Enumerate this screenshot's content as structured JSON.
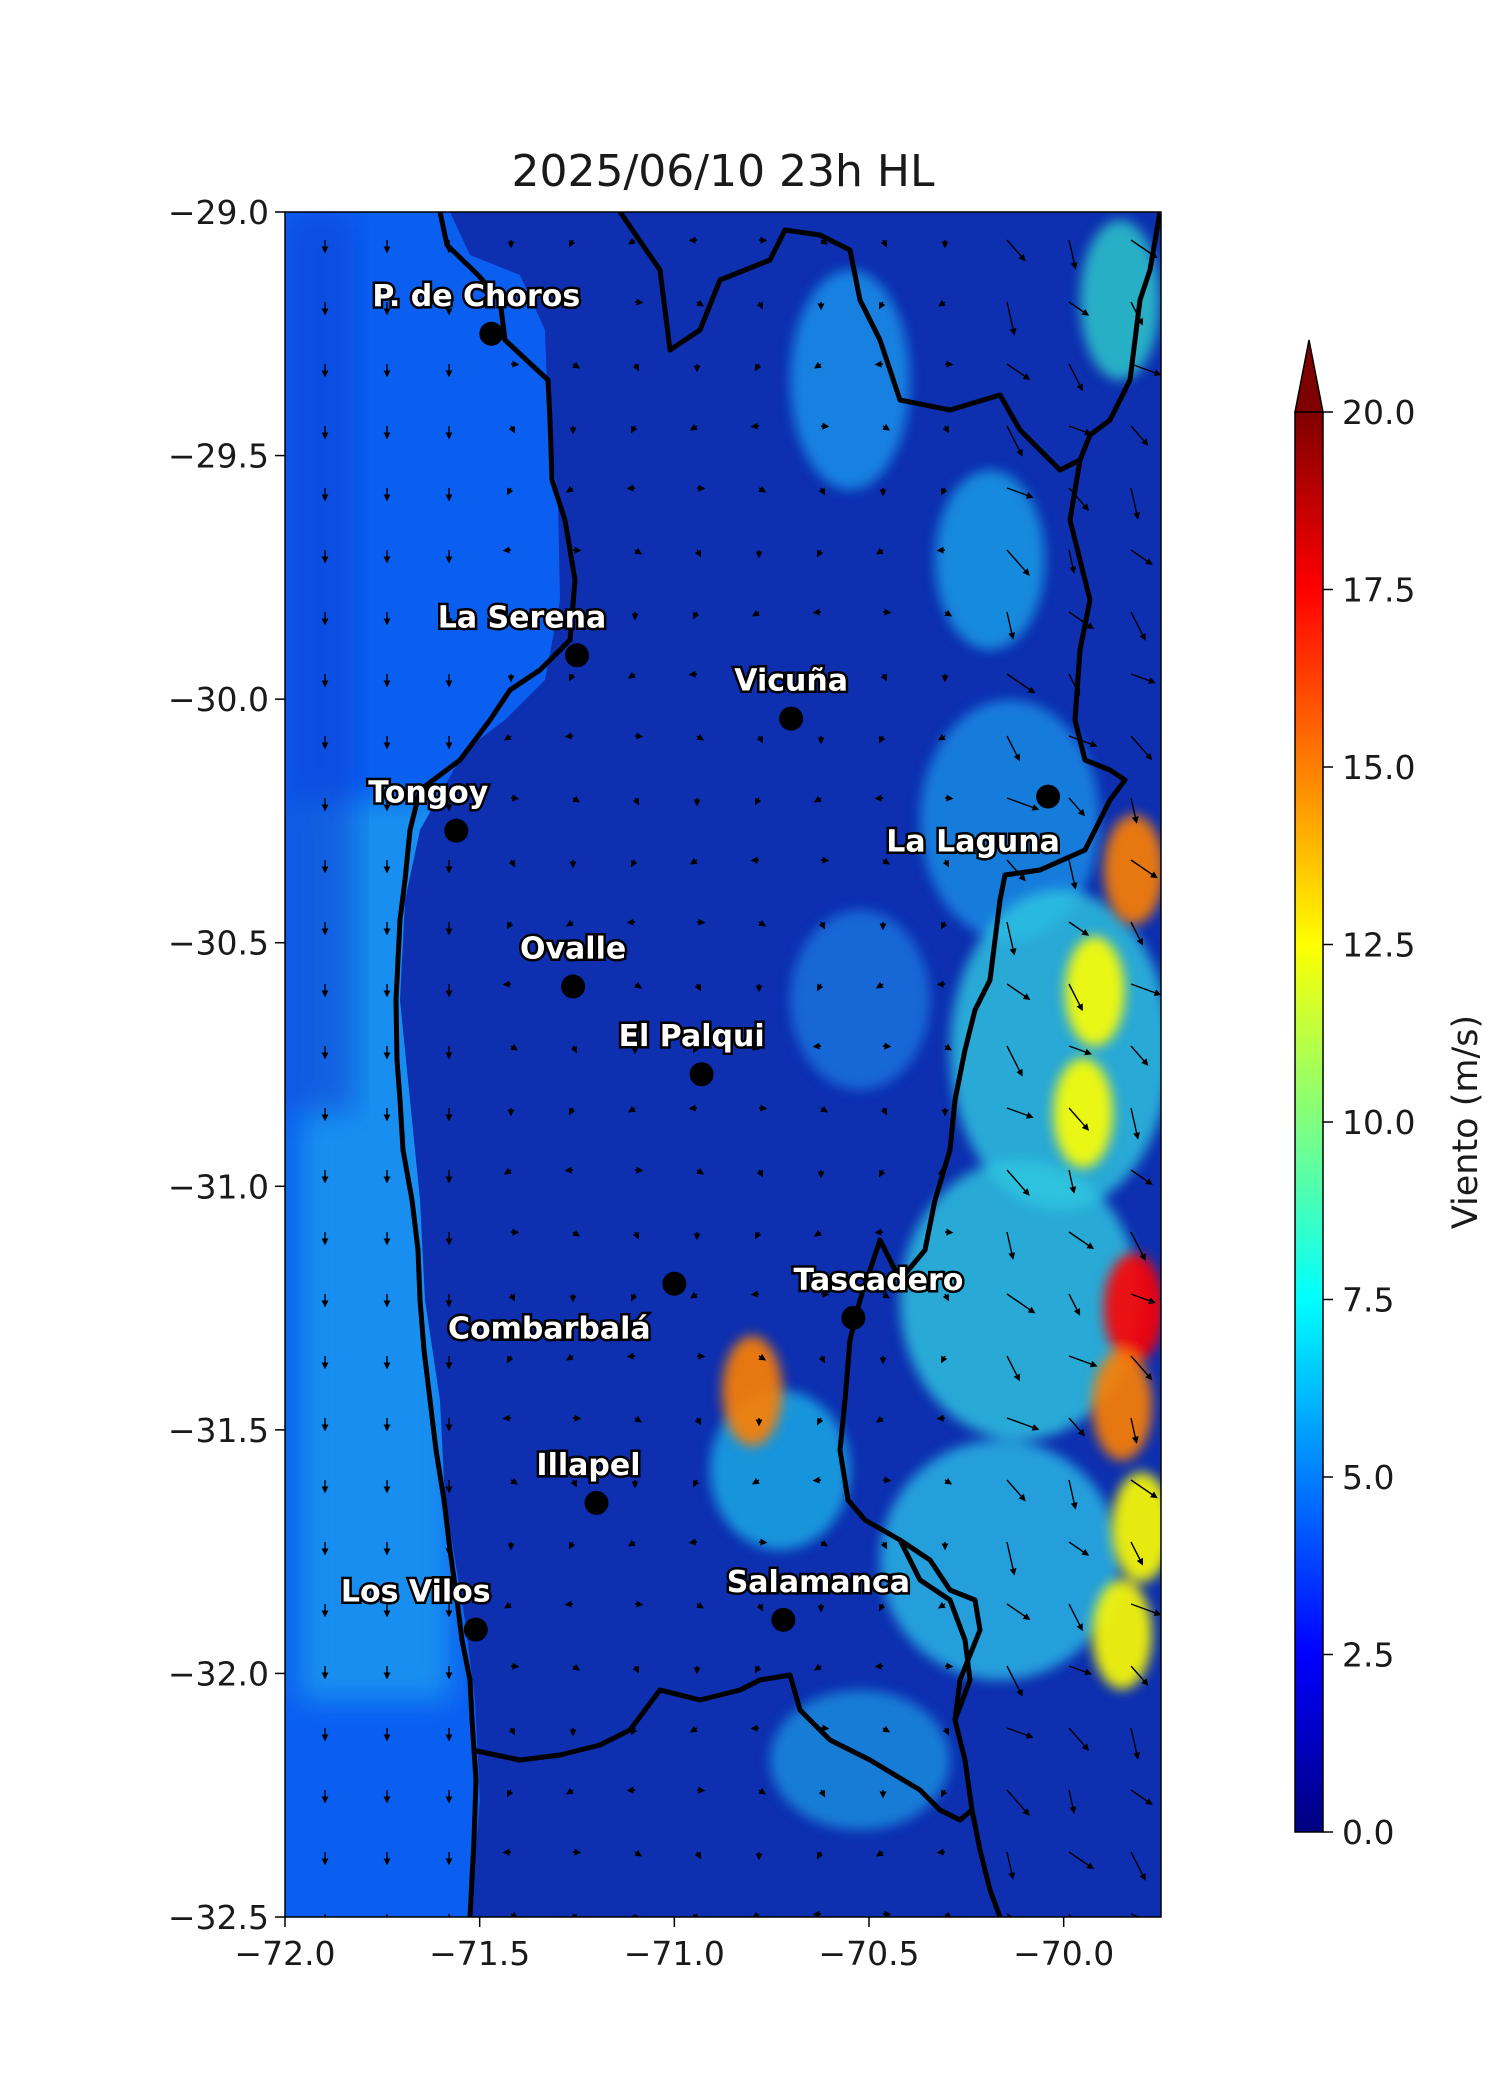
{
  "map": {
    "title": "2025/06/10 23h HL",
    "lon_range": [
      -72.0,
      -69.75
    ],
    "lat_range": [
      -32.5,
      -29.0
    ],
    "x_ticks": [
      "−72.0",
      "−71.5",
      "−71.0",
      "−70.5",
      "−70.0"
    ],
    "x_tick_values": [
      -72.0,
      -71.5,
      -71.0,
      -70.5,
      -70.0
    ],
    "y_ticks": [
      "−29.0",
      "−29.5",
      "−30.0",
      "−30.5",
      "−31.0",
      "−31.5",
      "−32.0",
      "−32.5"
    ],
    "y_tick_values": [
      -29.0,
      -29.5,
      -30.0,
      -30.5,
      -31.0,
      -31.5,
      -32.0,
      -32.5
    ],
    "colorbar": {
      "label": "Viento (m/s)",
      "ticks": [
        "0.0",
        "2.5",
        "5.0",
        "7.5",
        "10.0",
        "12.5",
        "15.0",
        "17.5",
        "20.0"
      ],
      "range": [
        0,
        20
      ],
      "extend": "max",
      "colors": [
        "#00007f",
        "#0000ff",
        "#007fff",
        "#00ffff",
        "#7fff7f",
        "#ffff00",
        "#ff7f00",
        "#ff0000",
        "#7f0000"
      ]
    },
    "ocean_color": "#0a5ff0",
    "land_color": "#0d2fb0",
    "cities": [
      {
        "name": "P. de Choros",
        "lon": -71.47,
        "lat": -29.25
      },
      {
        "name": "La Serena",
        "lon": -71.25,
        "lat": -29.91
      },
      {
        "name": "Vicuña",
        "lon": -70.7,
        "lat": -30.04
      },
      {
        "name": "Tongoy",
        "lon": -71.56,
        "lat": -30.27
      },
      {
        "name": "La Laguna",
        "lon": -70.04,
        "lat": -30.2
      },
      {
        "name": "Ovalle",
        "lon": -71.26,
        "lat": -30.59
      },
      {
        "name": "El Palqui",
        "lon": -70.93,
        "lat": -30.77
      },
      {
        "name": "Combarbalá",
        "lon": -71.0,
        "lat": -31.2
      },
      {
        "name": "Tascadero",
        "lon": -70.54,
        "lat": -31.27
      },
      {
        "name": "Illapel",
        "lon": -71.2,
        "lat": -31.65
      },
      {
        "name": "Los Vilos",
        "lon": -71.51,
        "lat": -31.91
      },
      {
        "name": "Salamanca",
        "lon": -70.72,
        "lat": -31.89
      }
    ],
    "wind_hotspots": [
      {
        "lon": -69.82,
        "lat": -31.25,
        "speed": 17
      },
      {
        "lon": -69.85,
        "lat": -31.45,
        "speed": 16
      },
      {
        "lon": -69.8,
        "lat": -31.7,
        "speed": 13
      },
      {
        "lon": -69.82,
        "lat": -30.35,
        "speed": 14
      },
      {
        "lon": -70.8,
        "lat": -31.42,
        "speed": 16
      },
      {
        "lon": -69.92,
        "lat": -30.6,
        "speed": 13
      },
      {
        "lon": -69.85,
        "lat": -31.92,
        "speed": 13
      },
      {
        "lon": -69.95,
        "lat": -30.85,
        "speed": 12
      }
    ]
  }
}
